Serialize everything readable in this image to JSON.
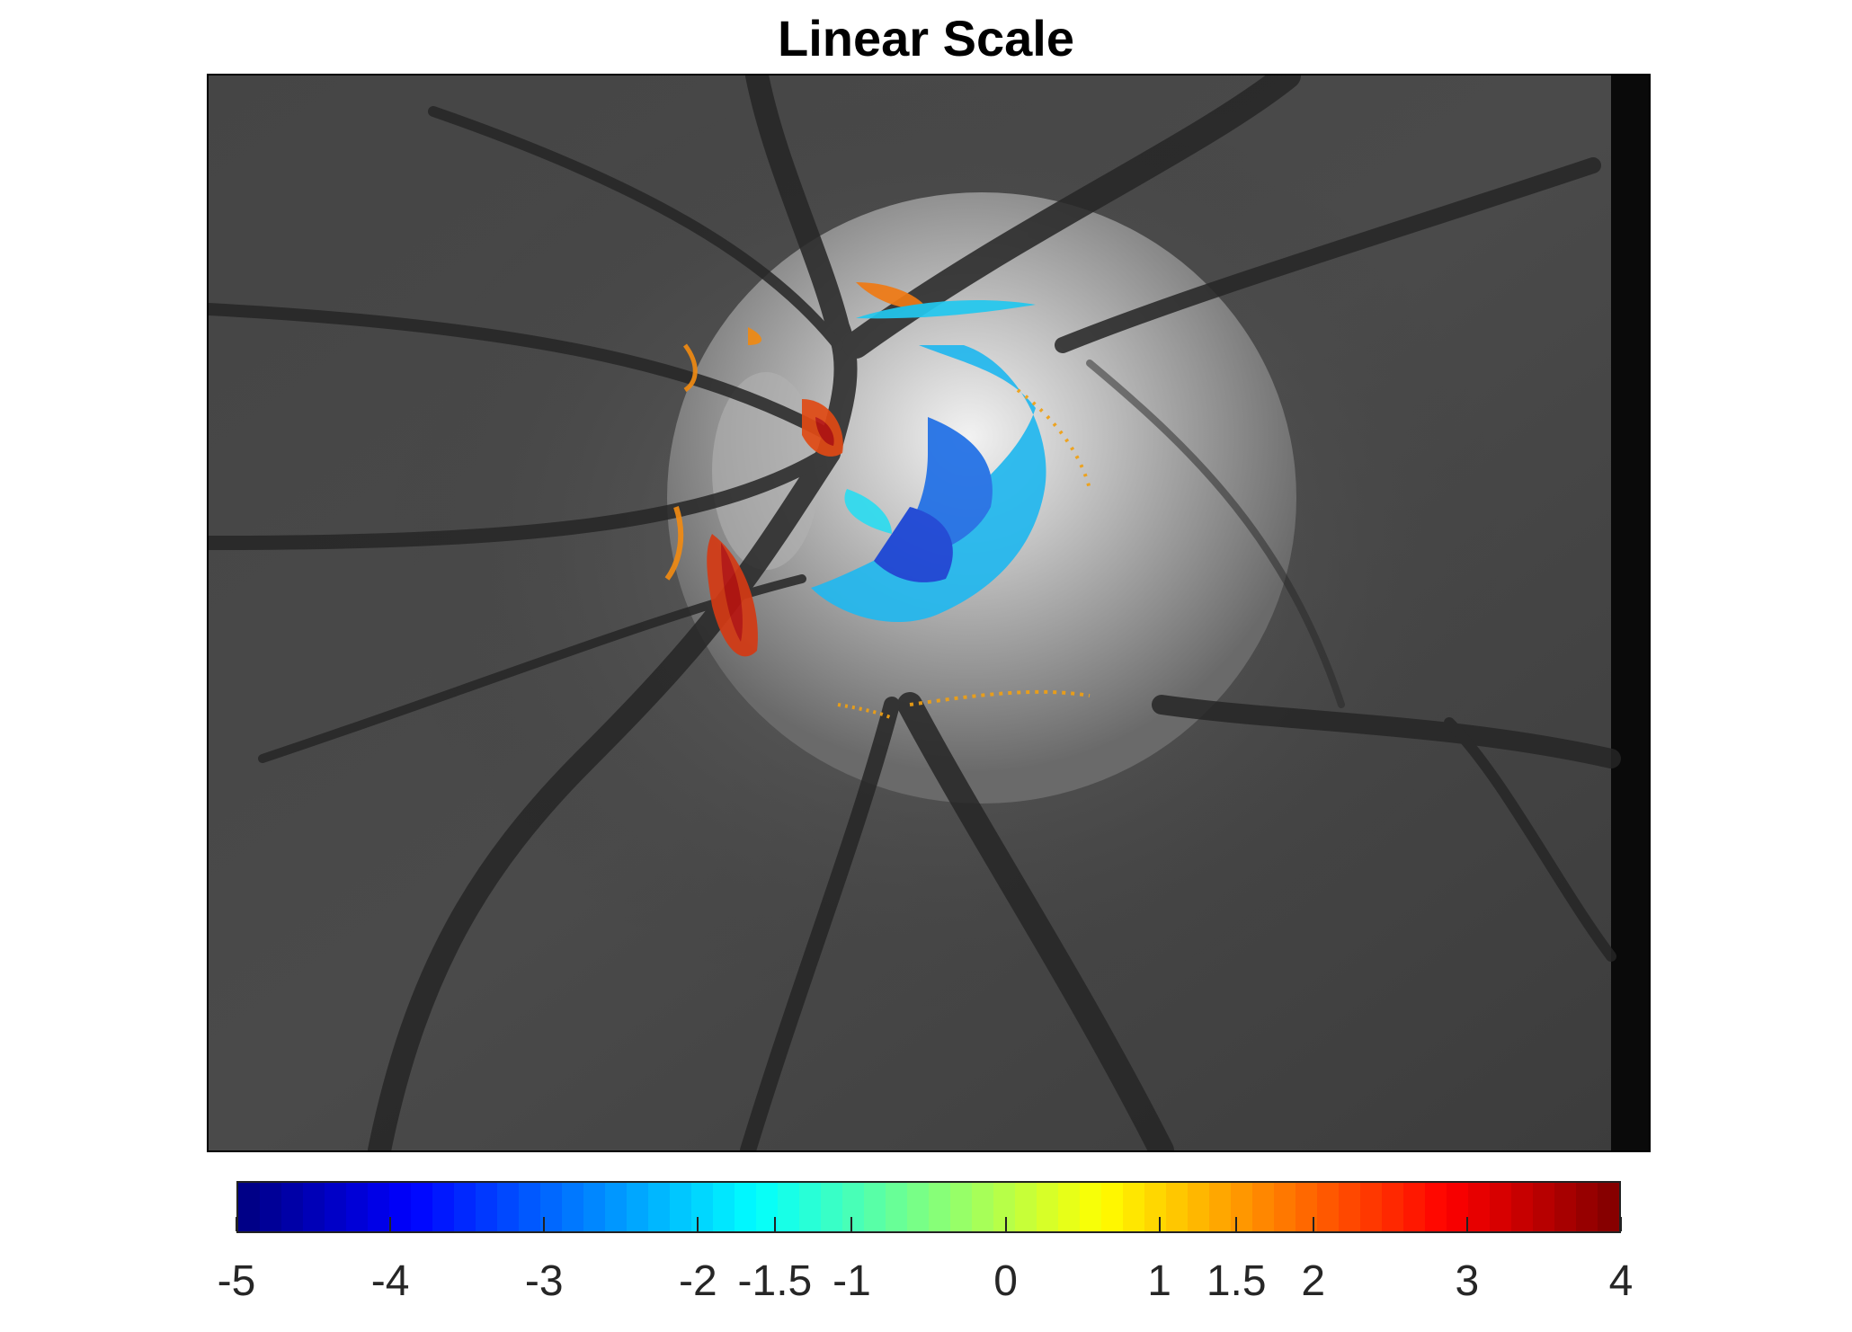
{
  "title": "Linear Scale",
  "image": {
    "description_icon": "retina-optic-disc-overlay-image",
    "background": "#3f3f3f"
  },
  "colorbar": {
    "colormap": "jet",
    "min": -5,
    "max": 4,
    "ticks": [
      {
        "value": -5,
        "label": "-5"
      },
      {
        "value": -4,
        "label": "-4"
      },
      {
        "value": -3,
        "label": "-3"
      },
      {
        "value": -2,
        "label": "-2"
      },
      {
        "value": -1.5,
        "label": "-1.5"
      },
      {
        "value": -1,
        "label": "-1"
      },
      {
        "value": 0,
        "label": "0"
      },
      {
        "value": 1,
        "label": "1"
      },
      {
        "value": 1.5,
        "label": "1.5"
      },
      {
        "value": 2,
        "label": "2"
      },
      {
        "value": 3,
        "label": "3"
      },
      {
        "value": 4,
        "label": "4"
      }
    ]
  }
}
